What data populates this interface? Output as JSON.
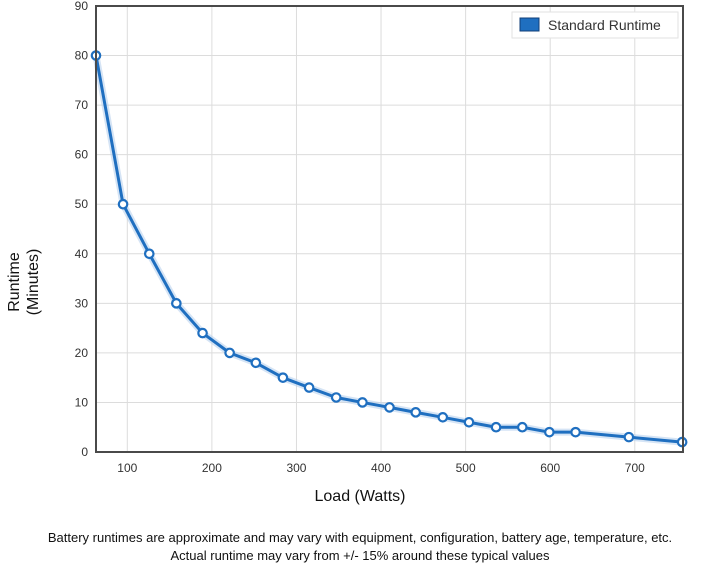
{
  "chart_data": {
    "type": "line",
    "xlabel": "Load (Watts)",
    "ylabel_line1": "Runtime",
    "ylabel_line2": "(Minutes)",
    "xlim": [
      63,
      757
    ],
    "ylim": [
      0,
      90
    ],
    "x_ticks": [
      100,
      200,
      300,
      400,
      500,
      600,
      700
    ],
    "y_ticks": [
      0,
      10,
      20,
      30,
      40,
      50,
      60,
      70,
      80,
      90
    ],
    "grid": true,
    "legend_position": "top-right",
    "series": [
      {
        "name": "Standard Runtime",
        "color": "#1f6fc0",
        "x": [
          63,
          95,
          126,
          158,
          189,
          221,
          252,
          284,
          315,
          347,
          378,
          410,
          441,
          473,
          504,
          536,
          567,
          599,
          630,
          693,
          756
        ],
        "y": [
          80,
          50,
          40,
          30,
          24,
          20,
          18,
          15,
          13,
          11,
          10,
          9,
          8,
          7,
          6,
          5,
          5,
          4,
          4,
          3,
          2
        ]
      }
    ]
  },
  "footer": {
    "line1": "Battery runtimes are approximate and may vary with equipment, configuration, battery age, temperature, etc.",
    "line2": "Actual runtime may vary from +/- 15% around these typical values"
  }
}
